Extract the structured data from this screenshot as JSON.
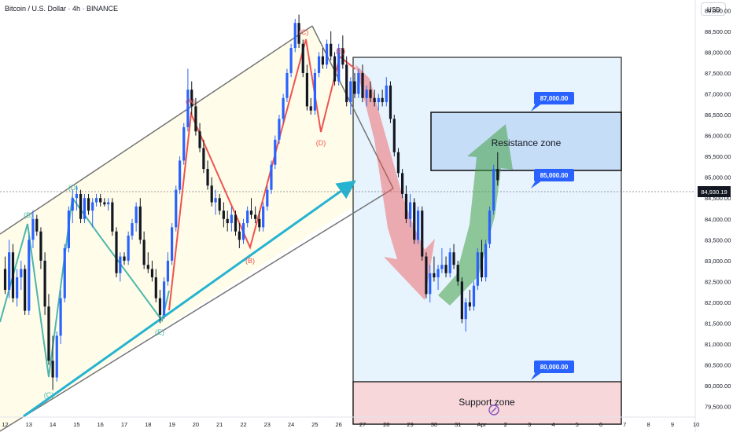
{
  "header": {
    "title": "Bitcoin / U.S. Dollar · 4h · BINANCE",
    "currency": "USD"
  },
  "colors": {
    "up": "#2962ff",
    "down": "#131722",
    "zigzag_red": "#ef5350",
    "zigzag_teal": "#4db6ac",
    "trendline": "#26b3d1",
    "channel": "#757575",
    "price_badge": "#2962ff",
    "current_price_bg": "#131722"
  },
  "chart_data": {
    "type": "candlestick",
    "symbol": "BTCUSD",
    "timeframe": "4h",
    "y_axis": {
      "min": 79250,
      "max": 89250,
      "ticks": [
        79500,
        80000,
        80500,
        81000,
        81500,
        82000,
        82500,
        83000,
        83500,
        84000,
        84500,
        85000,
        85500,
        86000,
        86500,
        87000,
        87500,
        88000,
        88500,
        89000
      ],
      "tick_labels": [
        "79,500.00",
        "80,000.00",
        "80,500.00",
        "81,000.00",
        "81,500.00",
        "82,000.00",
        "82,500.00",
        "83,000.00",
        "83,500.00",
        "84,000.00",
        "84,500.00",
        "85,000.00",
        "85,500.00",
        "86,000.00",
        "86,500.00",
        "87,000.00",
        "87,500.00",
        "88,000.00",
        "88,500.00",
        "89,000.00"
      ]
    },
    "x_axis": {
      "ticks": [
        {
          "label": "12",
          "day": 0
        },
        {
          "label": "13",
          "day": 1
        },
        {
          "label": "14",
          "day": 2
        },
        {
          "label": "15",
          "day": 3
        },
        {
          "label": "16",
          "day": 4
        },
        {
          "label": "17",
          "day": 5
        },
        {
          "label": "18",
          "day": 6
        },
        {
          "label": "19",
          "day": 7
        },
        {
          "label": "20",
          "day": 8
        },
        {
          "label": "21",
          "day": 9
        },
        {
          "label": "22",
          "day": 10
        },
        {
          "label": "23",
          "day": 11
        },
        {
          "label": "24",
          "day": 12
        },
        {
          "label": "25",
          "day": 13
        },
        {
          "label": "26",
          "day": 14
        },
        {
          "label": "27",
          "day": 15
        },
        {
          "label": "28",
          "day": 16
        },
        {
          "label": "29",
          "day": 17
        },
        {
          "label": "30",
          "day": 18
        },
        {
          "label": "31",
          "day": 19
        },
        {
          "label": "Apr",
          "day": 20
        },
        {
          "label": "2",
          "day": 21
        },
        {
          "label": "3",
          "day": 22
        },
        {
          "label": "4",
          "day": 23
        },
        {
          "label": "5",
          "day": 24
        },
        {
          "label": "6",
          "day": 25
        },
        {
          "label": "7",
          "day": 26
        },
        {
          "label": "8",
          "day": 27
        },
        {
          "label": "9",
          "day": 28
        },
        {
          "label": "10",
          "day": 29
        }
      ]
    },
    "current_price": 84930.19,
    "current_price_label": "84,930.19",
    "candles": [
      {
        "day": 0.0,
        "o": 82800,
        "h": 83100,
        "l": 82200,
        "c": 82300
      },
      {
        "day": 0.17,
        "o": 82300,
        "h": 83500,
        "l": 82100,
        "c": 83200
      },
      {
        "day": 0.33,
        "o": 83200,
        "h": 83400,
        "l": 82000,
        "c": 82100
      },
      {
        "day": 0.5,
        "o": 82100,
        "h": 82800,
        "l": 81900,
        "c": 82600
      },
      {
        "day": 0.67,
        "o": 82600,
        "h": 83000,
        "l": 82300,
        "c": 82800
      },
      {
        "day": 0.83,
        "o": 82800,
        "h": 82900,
        "l": 81700,
        "c": 81800
      },
      {
        "day": 1.0,
        "o": 81800,
        "h": 83600,
        "l": 81700,
        "c": 83500
      },
      {
        "day": 1.17,
        "o": 83500,
        "h": 84200,
        "l": 83300,
        "c": 84000
      },
      {
        "day": 1.33,
        "o": 84000,
        "h": 84100,
        "l": 83600,
        "c": 83700
      },
      {
        "day": 1.5,
        "o": 83700,
        "h": 83800,
        "l": 82800,
        "c": 83000
      },
      {
        "day": 1.67,
        "o": 83000,
        "h": 83200,
        "l": 81700,
        "c": 81900
      },
      {
        "day": 1.83,
        "o": 81900,
        "h": 82200,
        "l": 80500,
        "c": 80600
      },
      {
        "day": 2.0,
        "o": 80600,
        "h": 81200,
        "l": 79900,
        "c": 80200
      },
      {
        "day": 2.17,
        "o": 80200,
        "h": 81300,
        "l": 80100,
        "c": 81200
      },
      {
        "day": 2.33,
        "o": 81200,
        "h": 82300,
        "l": 81000,
        "c": 82100
      },
      {
        "day": 2.5,
        "o": 82100,
        "h": 83400,
        "l": 82000,
        "c": 83300
      },
      {
        "day": 2.67,
        "o": 83300,
        "h": 84300,
        "l": 83200,
        "c": 84200
      },
      {
        "day": 2.83,
        "o": 84200,
        "h": 84700,
        "l": 83900,
        "c": 84500
      },
      {
        "day": 3.0,
        "o": 84500,
        "h": 84800,
        "l": 84200,
        "c": 84600
      },
      {
        "day": 3.17,
        "o": 84600,
        "h": 84700,
        "l": 83900,
        "c": 84000
      },
      {
        "day": 3.33,
        "o": 84000,
        "h": 84600,
        "l": 83900,
        "c": 84500
      },
      {
        "day": 3.5,
        "o": 84500,
        "h": 84600,
        "l": 84100,
        "c": 84200
      },
      {
        "day": 3.67,
        "o": 84200,
        "h": 84500,
        "l": 83800,
        "c": 84400
      },
      {
        "day": 3.83,
        "o": 84400,
        "h": 84600,
        "l": 84300,
        "c": 84500
      },
      {
        "day": 4.0,
        "o": 84500,
        "h": 84600,
        "l": 84300,
        "c": 84400
      },
      {
        "day": 4.17,
        "o": 84400,
        "h": 84500,
        "l": 84300,
        "c": 84350
      },
      {
        "day": 4.33,
        "o": 84350,
        "h": 84500,
        "l": 84200,
        "c": 84400
      },
      {
        "day": 4.5,
        "o": 84400,
        "h": 84500,
        "l": 83600,
        "c": 83700
      },
      {
        "day": 4.67,
        "o": 83700,
        "h": 83800,
        "l": 82600,
        "c": 82700
      },
      {
        "day": 4.83,
        "o": 82700,
        "h": 83200,
        "l": 82500,
        "c": 83100
      },
      {
        "day": 5.0,
        "o": 83100,
        "h": 83200,
        "l": 82900,
        "c": 83000
      },
      {
        "day": 5.17,
        "o": 83000,
        "h": 83700,
        "l": 82900,
        "c": 83600
      },
      {
        "day": 5.33,
        "o": 83600,
        "h": 84000,
        "l": 83500,
        "c": 83900
      },
      {
        "day": 5.5,
        "o": 83900,
        "h": 84400,
        "l": 83700,
        "c": 84300
      },
      {
        "day": 5.67,
        "o": 84300,
        "h": 84500,
        "l": 83400,
        "c": 83500
      },
      {
        "day": 5.83,
        "o": 83500,
        "h": 83700,
        "l": 82800,
        "c": 82900
      },
      {
        "day": 6.0,
        "o": 82900,
        "h": 83200,
        "l": 82700,
        "c": 82800
      },
      {
        "day": 6.17,
        "o": 82800,
        "h": 83000,
        "l": 82500,
        "c": 82600
      },
      {
        "day": 6.33,
        "o": 82600,
        "h": 82800,
        "l": 82000,
        "c": 82100
      },
      {
        "day": 6.5,
        "o": 82100,
        "h": 82300,
        "l": 81500,
        "c": 81700
      },
      {
        "day": 6.67,
        "o": 81700,
        "h": 82600,
        "l": 81600,
        "c": 82500
      },
      {
        "day": 6.83,
        "o": 82500,
        "h": 83200,
        "l": 82400,
        "c": 83000
      },
      {
        "day": 7.0,
        "o": 83000,
        "h": 83900,
        "l": 82900,
        "c": 83800
      },
      {
        "day": 7.17,
        "o": 83800,
        "h": 84800,
        "l": 83700,
        "c": 84700
      },
      {
        "day": 7.33,
        "o": 84700,
        "h": 85500,
        "l": 84600,
        "c": 85400
      },
      {
        "day": 7.5,
        "o": 85400,
        "h": 86300,
        "l": 85300,
        "c": 86200
      },
      {
        "day": 7.67,
        "o": 86200,
        "h": 87600,
        "l": 86100,
        "c": 87100
      },
      {
        "day": 7.83,
        "o": 87100,
        "h": 87300,
        "l": 86500,
        "c": 86700
      },
      {
        "day": 8.0,
        "o": 86700,
        "h": 86900,
        "l": 86000,
        "c": 86100
      },
      {
        "day": 8.17,
        "o": 86100,
        "h": 86300,
        "l": 85600,
        "c": 85700
      },
      {
        "day": 8.33,
        "o": 85700,
        "h": 85900,
        "l": 85100,
        "c": 85200
      },
      {
        "day": 8.5,
        "o": 85200,
        "h": 85400,
        "l": 84700,
        "c": 84800
      },
      {
        "day": 8.67,
        "o": 84800,
        "h": 85000,
        "l": 84300,
        "c": 84400
      },
      {
        "day": 8.83,
        "o": 84400,
        "h": 84700,
        "l": 84100,
        "c": 84500
      },
      {
        "day": 9.0,
        "o": 84500,
        "h": 84600,
        "l": 84100,
        "c": 84200
      },
      {
        "day": 9.17,
        "o": 84200,
        "h": 84400,
        "l": 83800,
        "c": 84000
      },
      {
        "day": 9.33,
        "o": 84000,
        "h": 84200,
        "l": 83700,
        "c": 83900
      },
      {
        "day": 9.5,
        "o": 83900,
        "h": 84300,
        "l": 83700,
        "c": 84100
      },
      {
        "day": 9.67,
        "o": 84100,
        "h": 84200,
        "l": 83600,
        "c": 83700
      },
      {
        "day": 9.83,
        "o": 83700,
        "h": 83900,
        "l": 83300,
        "c": 83500
      },
      {
        "day": 10.0,
        "o": 83500,
        "h": 84000,
        "l": 83400,
        "c": 83900
      },
      {
        "day": 10.17,
        "o": 83900,
        "h": 84300,
        "l": 83800,
        "c": 84200
      },
      {
        "day": 10.33,
        "o": 84200,
        "h": 84500,
        "l": 84000,
        "c": 84100
      },
      {
        "day": 10.5,
        "o": 84100,
        "h": 84300,
        "l": 83900,
        "c": 84000
      },
      {
        "day": 10.67,
        "o": 84000,
        "h": 84200,
        "l": 83700,
        "c": 83800
      },
      {
        "day": 10.83,
        "o": 83800,
        "h": 84400,
        "l": 83700,
        "c": 84300
      },
      {
        "day": 11.0,
        "o": 84300,
        "h": 84800,
        "l": 84200,
        "c": 84700
      },
      {
        "day": 11.17,
        "o": 84700,
        "h": 85400,
        "l": 84600,
        "c": 85300
      },
      {
        "day": 11.33,
        "o": 85300,
        "h": 86000,
        "l": 85200,
        "c": 85900
      },
      {
        "day": 11.5,
        "o": 85900,
        "h": 86500,
        "l": 85800,
        "c": 86400
      },
      {
        "day": 11.67,
        "o": 86400,
        "h": 87000,
        "l": 86300,
        "c": 86900
      },
      {
        "day": 11.83,
        "o": 86900,
        "h": 87600,
        "l": 86800,
        "c": 87500
      },
      {
        "day": 12.0,
        "o": 87500,
        "h": 88200,
        "l": 87400,
        "c": 88100
      },
      {
        "day": 12.17,
        "o": 88100,
        "h": 88800,
        "l": 88000,
        "c": 88700
      },
      {
        "day": 12.33,
        "o": 88700,
        "h": 88900,
        "l": 88100,
        "c": 88200
      },
      {
        "day": 12.5,
        "o": 88200,
        "h": 88300,
        "l": 87400,
        "c": 87500
      },
      {
        "day": 12.67,
        "o": 87500,
        "h": 87700,
        "l": 86600,
        "c": 86700
      },
      {
        "day": 12.83,
        "o": 86700,
        "h": 86900,
        "l": 86500,
        "c": 86600
      },
      {
        "day": 13.0,
        "o": 86600,
        "h": 87600,
        "l": 86500,
        "c": 87500
      },
      {
        "day": 13.17,
        "o": 87500,
        "h": 88000,
        "l": 87400,
        "c": 87900
      },
      {
        "day": 13.33,
        "o": 87900,
        "h": 88100,
        "l": 87600,
        "c": 87700
      },
      {
        "day": 13.5,
        "o": 87700,
        "h": 88300,
        "l": 87600,
        "c": 88200
      },
      {
        "day": 13.67,
        "o": 88200,
        "h": 88500,
        "l": 87800,
        "c": 87900
      },
      {
        "day": 13.83,
        "o": 87900,
        "h": 88000,
        "l": 87200,
        "c": 87300
      },
      {
        "day": 14.0,
        "o": 87300,
        "h": 88200,
        "l": 87200,
        "c": 88100
      },
      {
        "day": 14.17,
        "o": 88100,
        "h": 88400,
        "l": 87600,
        "c": 87700
      },
      {
        "day": 14.33,
        "o": 87700,
        "h": 87900,
        "l": 86700,
        "c": 86800
      },
      {
        "day": 14.5,
        "o": 86800,
        "h": 87400,
        "l": 86500,
        "c": 87300
      },
      {
        "day": 14.67,
        "o": 87300,
        "h": 87500,
        "l": 86900,
        "c": 87000
      },
      {
        "day": 14.83,
        "o": 87000,
        "h": 87600,
        "l": 86900,
        "c": 87500
      },
      {
        "day": 15.0,
        "o": 87500,
        "h": 87700,
        "l": 86800,
        "c": 86900
      },
      {
        "day": 15.17,
        "o": 86900,
        "h": 87200,
        "l": 86700,
        "c": 87100
      },
      {
        "day": 15.33,
        "o": 87100,
        "h": 87300,
        "l": 86800,
        "c": 86900
      },
      {
        "day": 15.5,
        "o": 86900,
        "h": 87100,
        "l": 86700,
        "c": 86800
      },
      {
        "day": 15.67,
        "o": 86800,
        "h": 87000,
        "l": 86600,
        "c": 86900
      },
      {
        "day": 15.83,
        "o": 86900,
        "h": 87100,
        "l": 86700,
        "c": 86800
      },
      {
        "day": 16.0,
        "o": 86800,
        "h": 87400,
        "l": 86700,
        "c": 87200
      },
      {
        "day": 16.17,
        "o": 87200,
        "h": 87300,
        "l": 86300,
        "c": 86400
      },
      {
        "day": 16.33,
        "o": 86400,
        "h": 86500,
        "l": 85500,
        "c": 85600
      },
      {
        "day": 16.5,
        "o": 85600,
        "h": 85700,
        "l": 85000,
        "c": 85100
      },
      {
        "day": 16.67,
        "o": 85100,
        "h": 85200,
        "l": 84500,
        "c": 84600
      },
      {
        "day": 16.83,
        "o": 84600,
        "h": 84800,
        "l": 83900,
        "c": 84000
      },
      {
        "day": 17.0,
        "o": 84000,
        "h": 84600,
        "l": 83800,
        "c": 84400
      },
      {
        "day": 17.17,
        "o": 84400,
        "h": 84500,
        "l": 83400,
        "c": 83500
      },
      {
        "day": 17.33,
        "o": 83500,
        "h": 84300,
        "l": 83400,
        "c": 84200
      },
      {
        "day": 17.5,
        "o": 84200,
        "h": 84300,
        "l": 83000,
        "c": 83100
      },
      {
        "day": 17.67,
        "o": 83100,
        "h": 83200,
        "l": 82100,
        "c": 82200
      },
      {
        "day": 17.83,
        "o": 82200,
        "h": 82900,
        "l": 82000,
        "c": 82700
      },
      {
        "day": 18.0,
        "o": 82700,
        "h": 83100,
        "l": 82500,
        "c": 82600
      },
      {
        "day": 18.17,
        "o": 82600,
        "h": 82900,
        "l": 82300,
        "c": 82800
      },
      {
        "day": 18.33,
        "o": 82800,
        "h": 83300,
        "l": 82700,
        "c": 82900
      },
      {
        "day": 18.5,
        "o": 82900,
        "h": 83100,
        "l": 82600,
        "c": 82700
      },
      {
        "day": 18.67,
        "o": 82700,
        "h": 83300,
        "l": 82600,
        "c": 83200
      },
      {
        "day": 18.83,
        "o": 83200,
        "h": 83400,
        "l": 82800,
        "c": 82900
      },
      {
        "day": 19.0,
        "o": 82900,
        "h": 83000,
        "l": 82400,
        "c": 82500
      },
      {
        "day": 19.17,
        "o": 82500,
        "h": 82600,
        "l": 81500,
        "c": 81600
      },
      {
        "day": 19.33,
        "o": 81600,
        "h": 82100,
        "l": 81300,
        "c": 82000
      },
      {
        "day": 19.5,
        "o": 82000,
        "h": 82300,
        "l": 81800,
        "c": 81900
      },
      {
        "day": 19.67,
        "o": 81900,
        "h": 82500,
        "l": 81800,
        "c": 82400
      },
      {
        "day": 19.83,
        "o": 82400,
        "h": 83300,
        "l": 82300,
        "c": 83200
      },
      {
        "day": 20.0,
        "o": 83200,
        "h": 83500,
        "l": 82500,
        "c": 82600
      },
      {
        "day": 20.17,
        "o": 82600,
        "h": 83500,
        "l": 82500,
        "c": 83400
      },
      {
        "day": 20.33,
        "o": 83400,
        "h": 84300,
        "l": 83300,
        "c": 84200
      },
      {
        "day": 20.5,
        "o": 84200,
        "h": 85300,
        "l": 84100,
        "c": 85200
      },
      {
        "day": 20.67,
        "o": 85200,
        "h": 85600,
        "l": 84800,
        "c": 84930
      }
    ],
    "annotations": {
      "channel_label": "",
      "zigzag_red_labels": [
        {
          "text": "(A)",
          "day": 7.7,
          "price": 87000
        },
        {
          "text": "(B)",
          "day": 10.0,
          "price": 83400
        },
        {
          "text": "(C)",
          "day": 12.2,
          "price": 88950
        },
        {
          "text": "(D)",
          "day": 13.0,
          "price": 86400
        },
        {
          "text": "(E)",
          "day": 13.8,
          "price": 88400
        }
      ],
      "zigzag_teal_labels": [
        {
          "text": "(B)",
          "day": 1.0,
          "price": 84000
        },
        {
          "text": "(C)",
          "day": 1.9,
          "price": 79700
        },
        {
          "text": "(D)",
          "day": 2.9,
          "price": 84700
        },
        {
          "text": "(E)",
          "day": 6.5,
          "price": 81300
        }
      ],
      "resistance_zone": {
        "label": "Resistance zone",
        "top": 87000,
        "bottom": 85500
      },
      "support_zone": {
        "label": "Support zone",
        "top": 80000,
        "bottom": 79250
      },
      "price_badges": [
        {
          "label": "87,000.00",
          "price": 87000
        },
        {
          "label": "85,000.00",
          "price": 85000
        },
        {
          "label": "80,000.00",
          "price": 80000
        }
      ]
    }
  }
}
